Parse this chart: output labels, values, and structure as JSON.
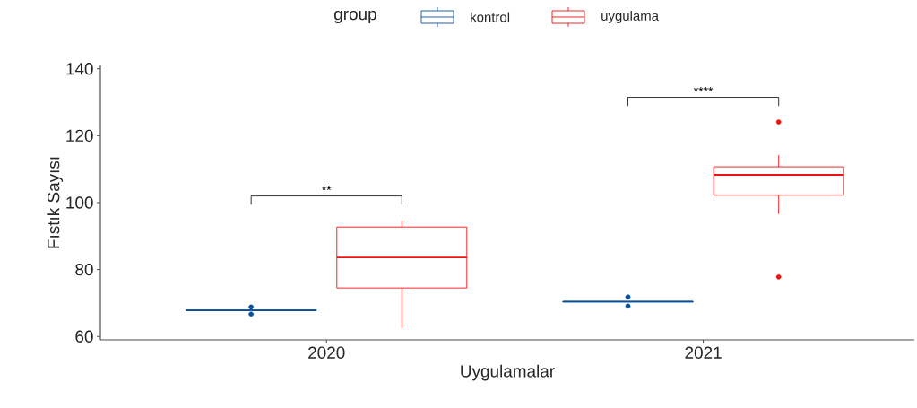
{
  "chart_data": {
    "type": "box",
    "xlabel": "Uygulamalar",
    "ylabel": "Fıstık Sayısı",
    "legend_title": "group",
    "legend": "top",
    "categories": [
      "2020",
      "2021"
    ],
    "series": [
      {
        "name": "kontrol",
        "color": "#0b4f9a",
        "boxes": [
          {
            "low": 67.8,
            "q1": 67.8,
            "median": 67.8,
            "q3": 67.8,
            "high": 67.8,
            "outliers": [
              66.7,
              68.8
            ]
          },
          {
            "low": 70.4,
            "q1": 70.4,
            "median": 70.4,
            "q3": 70.4,
            "high": 70.4,
            "outliers": [
              69.1,
              71.8
            ]
          }
        ]
      },
      {
        "name": "uygulama",
        "color": "#f01010",
        "boxes": [
          {
            "low": 62.4,
            "q1": 74.5,
            "median": 83.6,
            "q3": 92.7,
            "high": 94.6
          },
          {
            "low": 96.6,
            "q1": 102.2,
            "median": 108.3,
            "q3": 110.7,
            "high": 114.2,
            "outliers": [
              77.8,
              124.1
            ]
          }
        ]
      }
    ],
    "ylim": [
      59,
      141
    ],
    "yticks": [
      60,
      80,
      100,
      120,
      140
    ],
    "annotations": [
      "**",
      "****"
    ]
  }
}
